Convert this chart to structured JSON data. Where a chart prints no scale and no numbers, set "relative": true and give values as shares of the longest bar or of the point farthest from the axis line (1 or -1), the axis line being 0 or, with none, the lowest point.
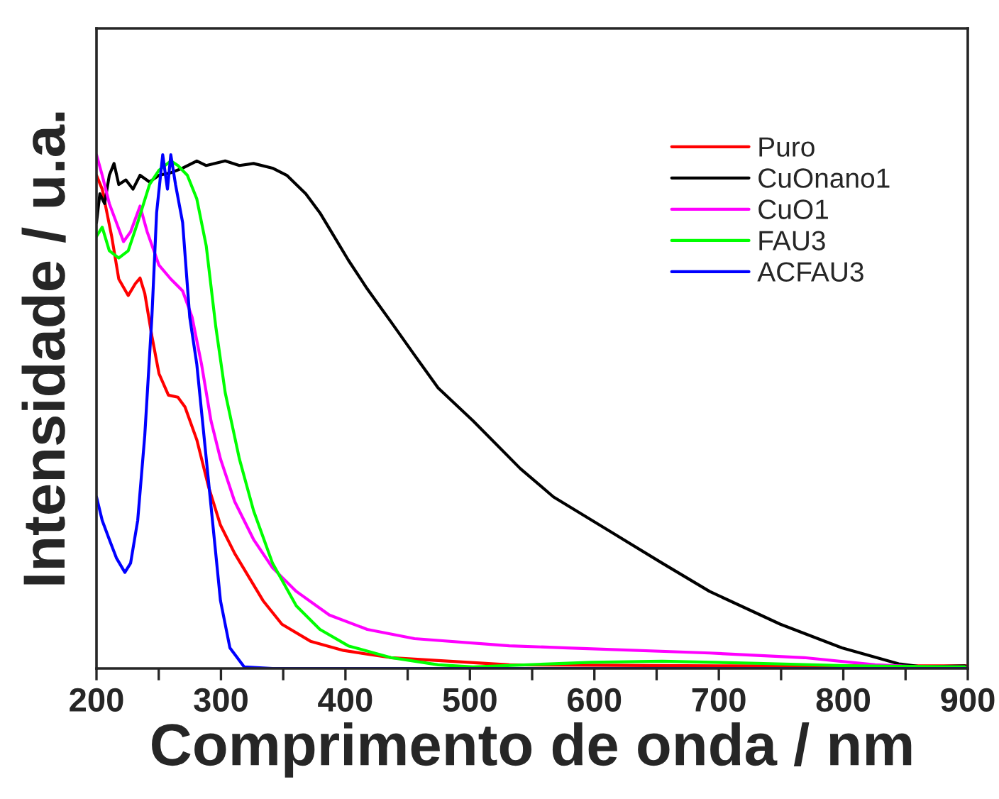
{
  "chart_data": {
    "type": "line",
    "relative": true,
    "xlabel": "Comprimento de onda / nm",
    "ylabel": "Intensidade / u.a.",
    "xlim": [
      200,
      900
    ],
    "xticks": [
      200,
      {
        "value": 250,
        "label": null
      },
      300,
      {
        "value": 350,
        "label": null
      },
      400,
      {
        "value": 450,
        "label": null
      },
      500,
      {
        "value": 550,
        "label": null
      },
      600,
      {
        "value": 650,
        "label": null
      },
      700,
      {
        "value": 750,
        "label": null
      },
      800,
      {
        "value": 850,
        "label": null
      },
      900
    ],
    "tick_labels": "x",
    "grid": false,
    "legend": "top right",
    "marker": "none",
    "line_style": "solid",
    "series": [
      {
        "name": "Puro",
        "color": "#ff0000",
        "x": [
          200,
          204.6,
          212.2,
          217.9,
          225.5,
          231.2,
          235.0,
          238.8,
          244.5,
          250.2,
          257.8,
          265.4,
          271.1,
          280.6,
          290.1,
          299.6,
          311.0,
          322.4,
          333.8,
          349.0,
          371.9,
          398.5,
          436.5,
          531.6,
          700,
          900
        ],
        "values": [
          0.96,
          0.933,
          0.841,
          0.758,
          0.726,
          0.749,
          0.76,
          0.73,
          0.647,
          0.574,
          0.532,
          0.528,
          0.509,
          0.445,
          0.353,
          0.279,
          0.224,
          0.178,
          0.132,
          0.086,
          0.053,
          0.035,
          0.021,
          0.007,
          0.005,
          0.005
        ]
      },
      {
        "name": "CuOnano1",
        "color": "#000000",
        "x": [
          200,
          202.7,
          206.5,
          210.3,
          214.1,
          217.9,
          223.6,
          229.3,
          235.0,
          242.6,
          250.2,
          259.7,
          269.2,
          280.6,
          288.2,
          303.4,
          314.8,
          326.2,
          341.4,
          352.9,
          368.1,
          379.5,
          390.9,
          402.3,
          417.5,
          436.5,
          455.5,
          474.5,
          502.5,
          540.5,
          567.1,
          616.5,
          654.5,
          692.5,
          749.5,
          798.9,
          844.5,
          863.5,
          897.7
        ],
        "values": [
          0.868,
          0.924,
          0.905,
          0.96,
          0.983,
          0.942,
          0.951,
          0.933,
          0.96,
          0.947,
          0.96,
          0.965,
          0.974,
          0.988,
          0.979,
          0.988,
          0.979,
          0.983,
          0.974,
          0.96,
          0.924,
          0.887,
          0.841,
          0.795,
          0.739,
          0.675,
          0.61,
          0.546,
          0.482,
          0.389,
          0.334,
          0.261,
          0.205,
          0.15,
          0.086,
          0.04,
          0.009,
          0.003,
          0.005
        ]
      },
      {
        "name": "CuO1",
        "color": "#ff00ff",
        "x": [
          200,
          204.6,
          210.3,
          216,
          221.7,
          227.4,
          235,
          240.7,
          250.2,
          259.7,
          269.2,
          276.8,
          284.4,
          292,
          299.6,
          311,
          326.2,
          341.4,
          360.5,
          387.1,
          417.5,
          455.5,
          531.6,
          578.5,
          692.5,
          768.5,
          825.5,
          863.5,
          897.7
        ],
        "values": [
          1,
          0.96,
          0.905,
          0.868,
          0.831,
          0.85,
          0.9,
          0.85,
          0.785,
          0.758,
          0.735,
          0.684,
          0.592,
          0.482,
          0.408,
          0.325,
          0.251,
          0.196,
          0.15,
          0.104,
          0.076,
          0.058,
          0.044,
          0.04,
          0.03,
          0.021,
          0.007,
          0.003,
          0.003
        ]
      },
      {
        "name": "FAU3",
        "color": "#00ff00",
        "x": [
          200,
          204.6,
          210.3,
          217.9,
          225.5,
          233.1,
          242.6,
          250.2,
          259.7,
          265.4,
          273,
          280.6,
          288.2,
          295.8,
          303.4,
          314.8,
          326.2,
          341.4,
          360.5,
          379.5,
          402.3,
          436.5,
          474.5,
          502.5,
          597.5,
          654.5,
          730.5,
          806.6,
          897.7
        ],
        "values": [
          0.841,
          0.859,
          0.813,
          0.799,
          0.813,
          0.868,
          0.942,
          0.97,
          0.988,
          0.979,
          0.96,
          0.914,
          0.822,
          0.666,
          0.537,
          0.408,
          0.307,
          0.205,
          0.122,
          0.076,
          0.044,
          0.021,
          0.007,
          0.003,
          0.012,
          0.014,
          0.01,
          0.005,
          0.003
        ]
      },
      {
        "name": "ACFAU3",
        "color": "#0000ff",
        "x": [
          200,
          204.6,
          210.3,
          216,
          222.8,
          227.4,
          233.1,
          238.8,
          244.5,
          248.3,
          253.2,
          257,
          259.7,
          263.5,
          269.2,
          274.9,
          280.6,
          288.2,
          293.9,
          299.6,
          307.2,
          318.6,
          341.4,
          600,
          900
        ],
        "values": [
          0.334,
          0.288,
          0.251,
          0.215,
          0.187,
          0.205,
          0.288,
          0.454,
          0.684,
          0.887,
          1,
          0.933,
          1,
          0.942,
          0.868,
          0.684,
          0.592,
          0.408,
          0.27,
          0.132,
          0.04,
          0.003,
          0,
          0,
          0
        ]
      }
    ]
  }
}
